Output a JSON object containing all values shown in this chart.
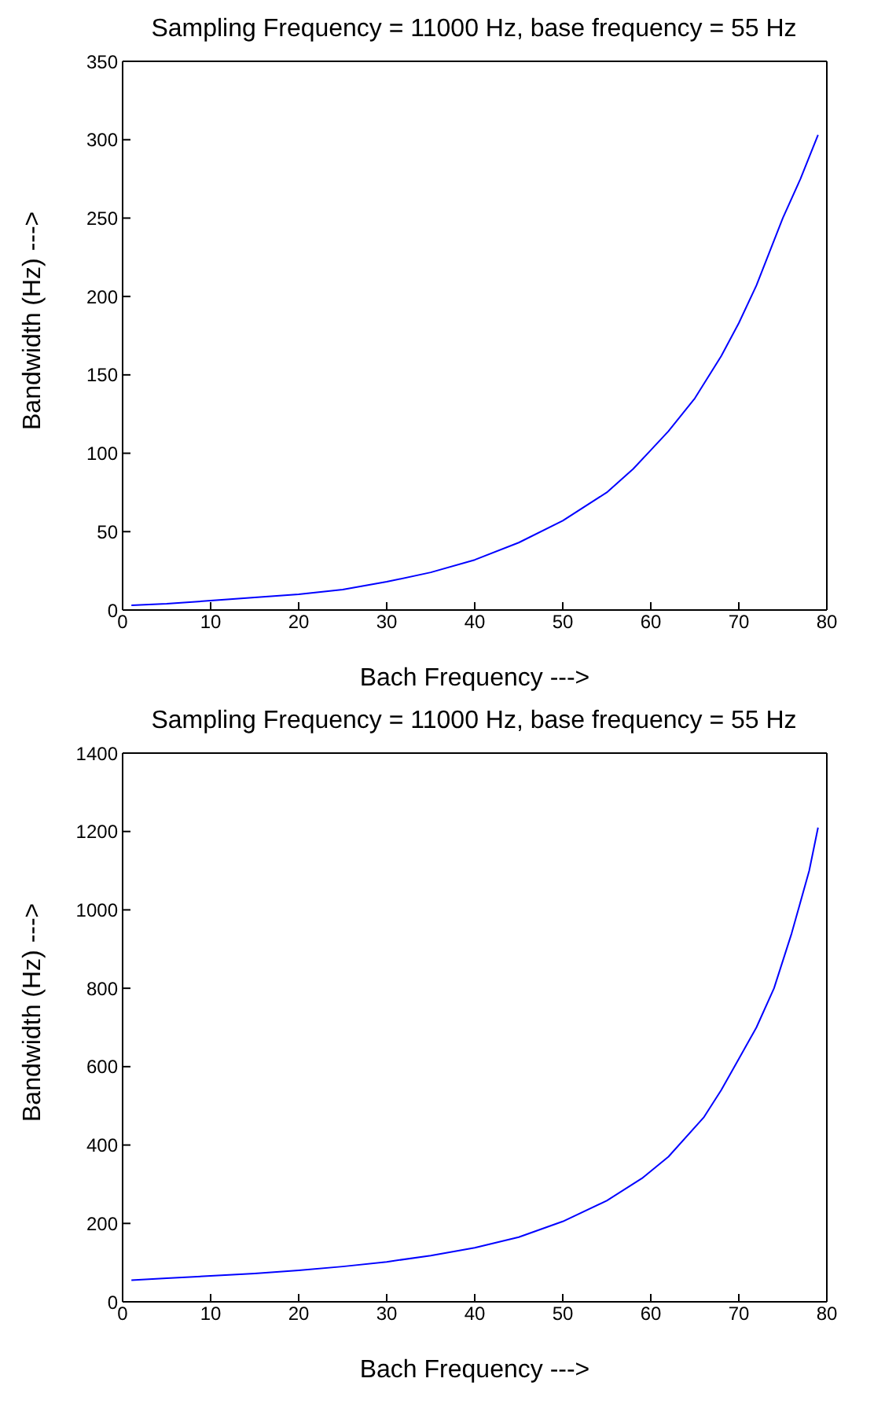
{
  "chart_data": [
    {
      "type": "line",
      "title": "Sampling Frequency = 11000 Hz, base frequency = 55 Hz",
      "xlabel": "Bach Frequency --->",
      "ylabel": "Bandwidth (Hz) --->",
      "xlim": [
        0,
        80
      ],
      "xticks": [
        0,
        10,
        20,
        30,
        40,
        50,
        60,
        70,
        80
      ],
      "ylim": [
        0,
        350
      ],
      "yticks": [
        0,
        50,
        100,
        150,
        200,
        250,
        300,
        350
      ],
      "marker": "none",
      "series": [
        {
          "color": "#0000ff",
          "x": [
            1,
            5,
            10,
            15,
            20,
            25,
            30,
            35,
            40,
            45,
            50,
            55,
            58,
            60,
            62,
            65,
            68,
            70,
            72,
            75,
            77,
            79
          ],
          "values": [
            3,
            4,
            6,
            8,
            10,
            13,
            18,
            24,
            32,
            43,
            57,
            75,
            90,
            102,
            114,
            135,
            162,
            183,
            207,
            250,
            275,
            303
          ]
        }
      ]
    },
    {
      "type": "line",
      "title": "Sampling Frequency = 11000 Hz, base frequency = 55 Hz",
      "xlabel": "Bach Frequency --->",
      "ylabel": "Bandwidth (Hz) --->",
      "xlim": [
        0,
        80
      ],
      "xticks": [
        0,
        10,
        20,
        30,
        40,
        50,
        60,
        70,
        80
      ],
      "ylim": [
        0,
        1400
      ],
      "yticks": [
        0,
        200,
        400,
        600,
        800,
        1000,
        1200,
        1400
      ],
      "marker": "none",
      "series": [
        {
          "color": "#0000ff",
          "x": [
            1,
            5,
            10,
            15,
            20,
            25,
            30,
            35,
            40,
            45,
            50,
            55,
            59,
            62,
            66,
            68,
            70,
            72,
            74,
            76,
            78,
            79
          ],
          "values": [
            55,
            60,
            66,
            72,
            80,
            90,
            102,
            118,
            138,
            165,
            205,
            258,
            315,
            370,
            470,
            540,
            620,
            700,
            800,
            940,
            1100,
            1210
          ]
        }
      ]
    }
  ]
}
